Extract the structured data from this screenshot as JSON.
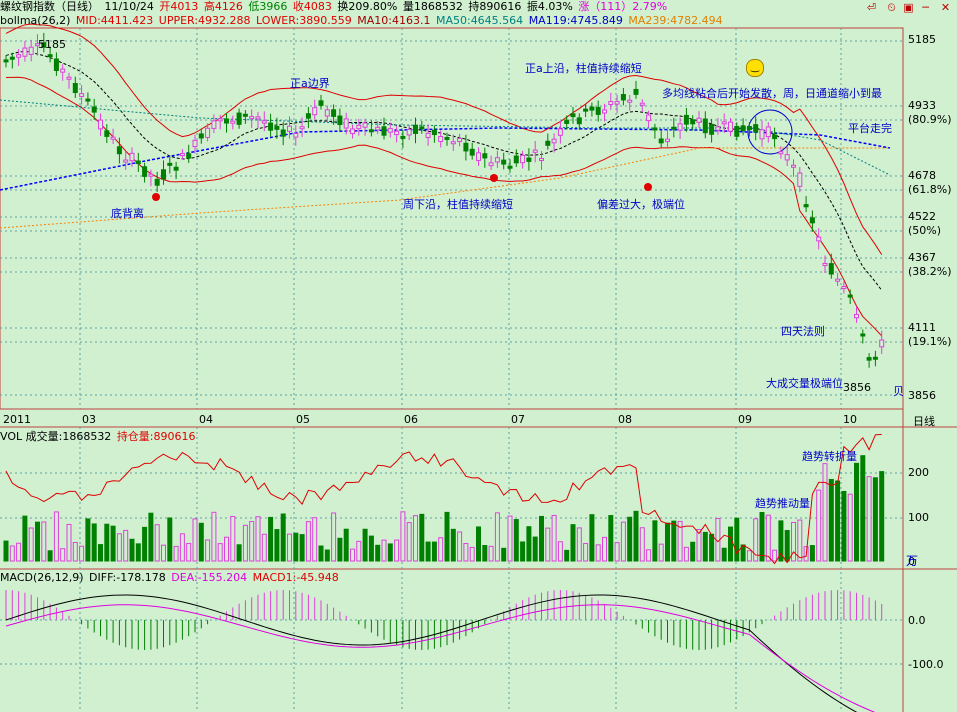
{
  "title_bar": {
    "name": "螺纹钢指数（日线）",
    "date": "11/10/24",
    "open": "开4013",
    "high": "高4126",
    "low": "低3966",
    "close": "收4083",
    "turnover": "换209.80%",
    "volume": "量1868532",
    "oi": "持890616",
    "amplitude": "振4.03%",
    "change": "涨（111）2.79%"
  },
  "indicator_line": {
    "name": "bollma(26,2)",
    "mid": "MID:4411.423",
    "upper": "UPPER:4932.288",
    "lower": "LOWER:3890.559",
    "ma10": "MA10:4163.1",
    "ma50": "MA50:4645.564",
    "ma119": "MA119:4745.849",
    "ma239": "MA239:4782.494"
  },
  "price_axis": {
    "labels": [
      "5185",
      "4933",
      "(80.9%)",
      "4678",
      "(61.8%)",
      "4522",
      "(50%)",
      "4367",
      "(38.2%)",
      "4111",
      "(19.1%)",
      "3856"
    ]
  },
  "price_marks": {
    "high_mark": "5185",
    "low_mark": "3856"
  },
  "time_axis": {
    "labels": [
      "2011",
      "03",
      "04",
      "05",
      "06",
      "07",
      "08",
      "09",
      "10"
    ],
    "period": "日线"
  },
  "annotations": {
    "a1": "正a边界",
    "a2": "底背离",
    "a3": "周下沿，柱值持续缩短",
    "a4": "正a上沿，柱值持续缩短",
    "a5": "偏差过大，极端位",
    "a6": "多均线粘合后开始发散，周，日通道缩小到最",
    "a7": "平台走完",
    "a8": "四天法则",
    "a9": "大成交量极端位",
    "a10": "贝"
  },
  "vol_panel": {
    "label": "VOL 成交量:1868532",
    "oi_label": "持仓量:890616",
    "axis": [
      "200",
      "100",
      "0"
    ],
    "unit": "万",
    "ann1": "趋势转折量",
    "ann2": "趋势推动量"
  },
  "macd_panel": {
    "label": "MACD(26,12,9)",
    "diff": "DIFF:-178.178",
    "dea": "DEA:-155.204",
    "macd": "MACD1:-45.948",
    "axis": [
      "0.0",
      "-100.0"
    ]
  },
  "colors": {
    "up": "#e040e0",
    "down": "#008000",
    "boll": "#e00000",
    "ma_blue": "#0000ff",
    "ma_teal": "#008080",
    "ma_orange": "#ff8000"
  }
}
